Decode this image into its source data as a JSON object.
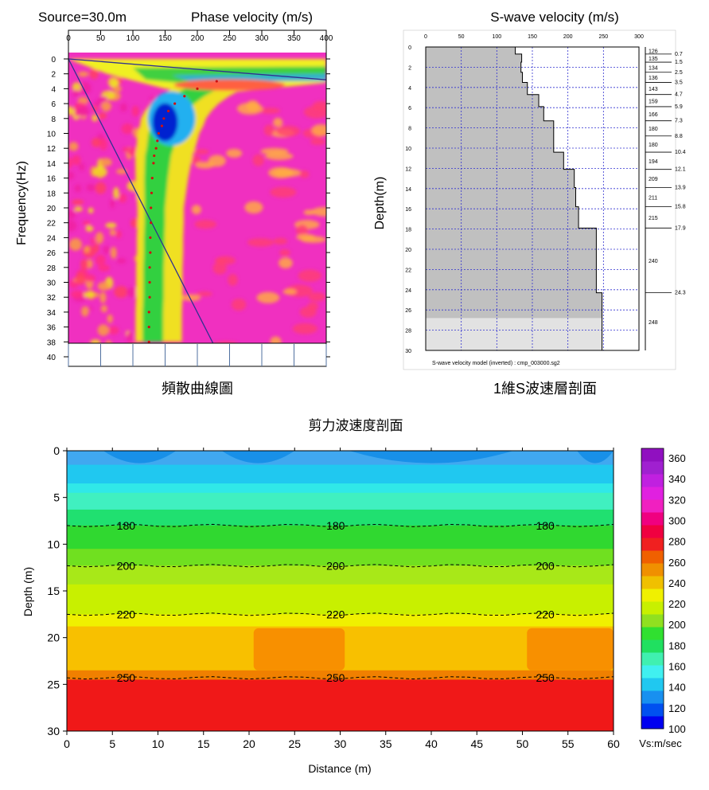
{
  "dispersion_panel": {
    "source_label": "Source=30.0m",
    "title": "Phase velocity (m/s)",
    "ylabel": "Frequency(Hz)",
    "caption": "頻散曲線圖",
    "chart_data": {
      "type": "heatmap",
      "x_ticks": [
        0,
        50,
        100,
        150,
        200,
        250,
        300,
        350,
        400
      ],
      "y_ticks": [
        0,
        2,
        4,
        6,
        8,
        10,
        12,
        14,
        16,
        18,
        20,
        22,
        24,
        26,
        28,
        30,
        32,
        34,
        36,
        38,
        40
      ],
      "xlim": [
        0,
        400
      ],
      "ylim": [
        0,
        40
      ],
      "picked_curve": {
        "frequency": [
          3,
          4,
          5,
          6,
          7,
          8,
          9,
          10,
          11,
          12,
          13,
          14,
          16,
          18,
          20,
          22,
          24,
          26,
          28,
          30,
          32,
          34,
          36,
          38
        ],
        "phase_velocity": [
          230,
          200,
          180,
          165,
          155,
          148,
          145,
          140,
          138,
          136,
          133,
          132,
          130,
          129,
          128,
          128,
          127,
          127,
          126,
          126,
          126,
          125,
          125,
          125
        ]
      },
      "guide_lines": [
        {
          "from": [
            0,
            0
          ],
          "to": [
            400,
            2.8
          ]
        },
        {
          "from": [
            0,
            0
          ],
          "to": [
            235,
            40
          ]
        }
      ]
    }
  },
  "profile_1d": {
    "title": "S-wave velocity (m/s)",
    "ylabel": "Depth(m)",
    "model_label": "S-wave velocity model (inverted) : cmp_003000.sg2",
    "caption": "1維S波速層剖面",
    "chart_data": {
      "type": "step",
      "x_ticks": [
        0,
        50,
        100,
        150,
        200,
        250,
        300
      ],
      "y_ticks": [
        0,
        2,
        4,
        6,
        8,
        10,
        12,
        14,
        16,
        18,
        20,
        22,
        24,
        26,
        28,
        30
      ],
      "xlim": [
        0,
        300
      ],
      "ylim": [
        0,
        30
      ],
      "layers": [
        {
          "velocity": 126,
          "bottom": 0.7
        },
        {
          "velocity": 135,
          "bottom": 1.5
        },
        {
          "velocity": 134,
          "bottom": 2.5
        },
        {
          "velocity": 136,
          "bottom": 3.5
        },
        {
          "velocity": 143,
          "bottom": 4.7
        },
        {
          "velocity": 159,
          "bottom": 5.9
        },
        {
          "velocity": 166,
          "bottom": 7.3
        },
        {
          "velocity": 180,
          "bottom": 8.8
        },
        {
          "velocity": 180,
          "bottom": 10.4
        },
        {
          "velocity": 194,
          "bottom": 12.1
        },
        {
          "velocity": 209,
          "bottom": 13.9
        },
        {
          "velocity": 211,
          "bottom": 15.8
        },
        {
          "velocity": 215,
          "bottom": 17.9
        },
        {
          "velocity": 240,
          "bottom": 24.3
        },
        {
          "velocity": 248,
          "bottom": 30
        }
      ],
      "boundary_labels": [
        "0.7",
        "1.5",
        "2.5",
        "3.5",
        "4.7",
        "5.9",
        "7.3",
        "8.8",
        "10.4",
        "12.1",
        "13.9",
        "15.8",
        "17.9",
        "24.3"
      ],
      "velocity_labels": [
        "126",
        "135",
        "134",
        "136",
        "143",
        "159",
        "166",
        "180",
        "180",
        "194",
        "209",
        "211",
        "215",
        "240",
        "248"
      ]
    }
  },
  "section_2d": {
    "title": "剪力波速度剖面",
    "xlabel": "Distance (m)",
    "ylabel": "Depth (m)",
    "colorbar_unit": "Vs:m/sec",
    "chart_data": {
      "type": "heatmap",
      "x_ticks": [
        0,
        5,
        10,
        15,
        20,
        25,
        30,
        35,
        40,
        45,
        50,
        55,
        60
      ],
      "y_ticks": [
        0,
        5,
        10,
        15,
        20,
        25,
        30
      ],
      "xlim": [
        0,
        60
      ],
      "ylim": [
        0,
        30
      ],
      "colorbar_ticks": [
        100,
        120,
        140,
        160,
        180,
        200,
        220,
        240,
        260,
        280,
        300,
        320,
        340,
        360
      ],
      "colorbar_colors": [
        "#0000f0",
        "#0050f0",
        "#1890f0",
        "#20c8f0",
        "#40f0f0",
        "#40f0b0",
        "#20e060",
        "#30e030",
        "#90e020",
        "#c8f000",
        "#f0f000",
        "#f0c000",
        "#f09000",
        "#f06000",
        "#f02020",
        "#f00040",
        "#f00080",
        "#f020c0",
        "#e020e0",
        "#c020e0",
        "#a020d0",
        "#9010c0"
      ],
      "layers": [
        {
          "top": 0,
          "bottom": 1.5,
          "velocity": 130,
          "color": "#40a8f0"
        },
        {
          "top": 1.5,
          "bottom": 3.5,
          "velocity": 140,
          "color": "#20c8f0"
        },
        {
          "top": 3.5,
          "bottom": 4.5,
          "velocity": 150,
          "color": "#30e8e8"
        },
        {
          "top": 4.5,
          "bottom": 6.3,
          "velocity": 165,
          "color": "#40f0c0"
        },
        {
          "top": 6.3,
          "bottom": 8,
          "velocity": 175,
          "color": "#20e070"
        },
        {
          "top": 8,
          "bottom": 10.5,
          "velocity": 185,
          "color": "#30d830"
        },
        {
          "top": 10.5,
          "bottom": 12.3,
          "velocity": 195,
          "color": "#70e020"
        },
        {
          "top": 12.3,
          "bottom": 14.3,
          "velocity": 205,
          "color": "#a8e818"
        },
        {
          "top": 14.3,
          "bottom": 17.5,
          "velocity": 212,
          "color": "#c8f000"
        },
        {
          "top": 17.5,
          "bottom": 18.8,
          "velocity": 222,
          "color": "#f0f000"
        },
        {
          "top": 18.8,
          "bottom": 23.5,
          "velocity": 235,
          "color": "#f8c000"
        },
        {
          "top": 23.5,
          "bottom": 24.5,
          "velocity": 248,
          "color": "#f08000"
        },
        {
          "top": 24.5,
          "bottom": 30,
          "velocity": 260,
          "color": "#f01818"
        }
      ],
      "patches": [
        {
          "x0": 20.5,
          "x1": 30.5,
          "top": 19,
          "bottom": 23.5,
          "color": "#f89000"
        },
        {
          "x0": 50.5,
          "x1": 60,
          "top": 19,
          "bottom": 23.5,
          "color": "#f89000"
        }
      ],
      "contours": [
        {
          "label": "180",
          "depth": 8,
          "label_x": [
            6.5,
            29.5,
            52.5
          ]
        },
        {
          "label": "200",
          "depth": 12.3,
          "label_x": [
            6.5,
            29.5,
            52.5
          ]
        },
        {
          "label": "220",
          "depth": 17.5,
          "label_x": [
            6.5,
            29.5,
            52.5
          ]
        },
        {
          "label": "250",
          "depth": 24.3,
          "label_x": [
            6.5,
            29.5,
            52.5
          ]
        }
      ]
    }
  }
}
